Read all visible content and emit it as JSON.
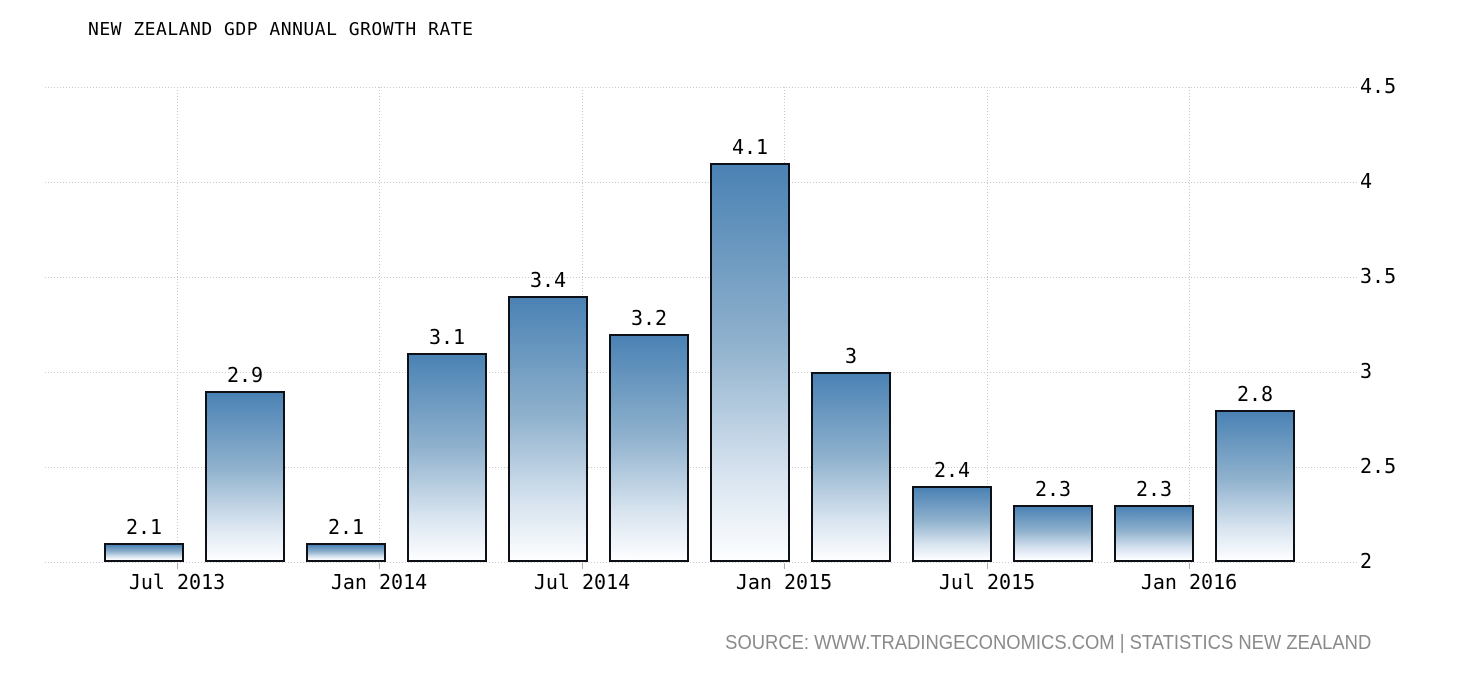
{
  "title": "NEW ZEALAND GDP ANNUAL GROWTH RATE",
  "source_text": "SOURCE: WWW.TRADINGECONOMICS.COM | STATISTICS NEW ZEALAND",
  "colors": {
    "background": "#ffffff",
    "text": "#000000",
    "source_text": "#8a8a8a",
    "gridline": "#c9c9c9",
    "tick": "#b0b0b0",
    "bar_border": "#0d1117",
    "bar_gradient_top": "#4a82b4",
    "bar_gradient_mid": "#8fb1cd",
    "bar_gradient_low": "#d7e3ef",
    "bar_gradient_bottom": "#fdfeff"
  },
  "chart_data": {
    "type": "bar",
    "title": "NEW ZEALAND GDP ANNUAL GROWTH RATE",
    "xlabel": "",
    "ylabel": "",
    "values": [
      2.1,
      2.9,
      2.1,
      3.1,
      3.4,
      3.2,
      4.1,
      3,
      2.4,
      2.3,
      2.3,
      2.8
    ],
    "bar_labels": [
      "2.1",
      "2.9",
      "2.1",
      "3.1",
      "3.4",
      "3.2",
      "4.1",
      "3",
      "2.4",
      "2.3",
      "2.3",
      "2.8"
    ],
    "x_tick_labels": [
      "Jul 2013",
      "Jan 2014",
      "Jul 2014",
      "Jan 2015",
      "Jul 2015",
      "Jan 2016"
    ],
    "bars_per_x_tick": 2,
    "y_ticks": [
      2,
      2.5,
      3,
      3.5,
      4,
      4.5
    ],
    "y_tick_labels": [
      "2",
      "2.5",
      "3",
      "3.5",
      "4",
      "4.5"
    ],
    "ylim": [
      2,
      4.5
    ],
    "y_axis_side": "right",
    "grid": "dotted, horizontal and vertical",
    "legend": "none",
    "annotation": "value label above each bar"
  }
}
